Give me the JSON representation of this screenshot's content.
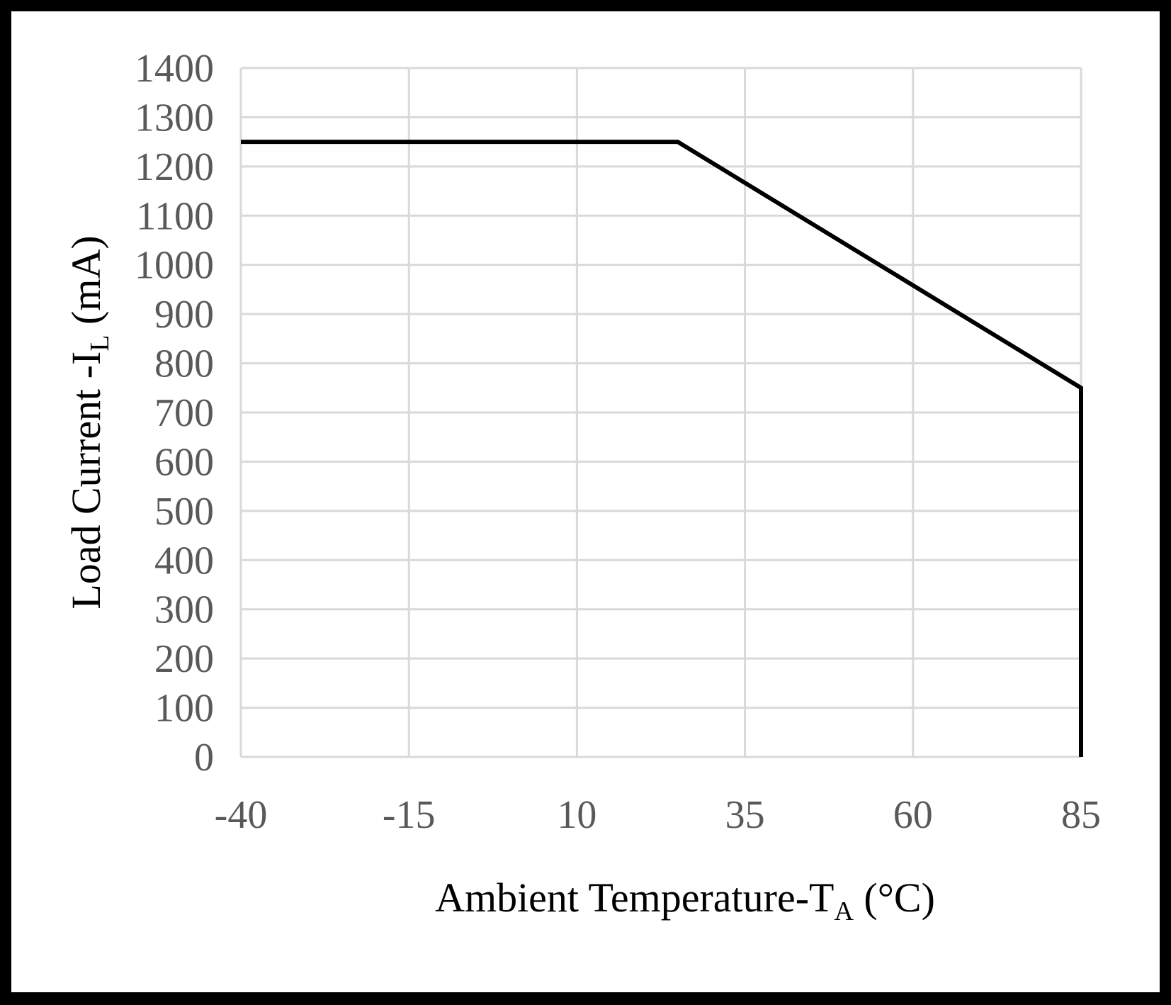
{
  "chart_data": {
    "type": "line",
    "title": "",
    "xlabel": "Ambient Temperature-T",
    "xlabel_sub": "A",
    "xlabel_suffix": " (°C)",
    "ylabel": "Load Current -I",
    "ylabel_sub": "L",
    "ylabel_suffix": " (mA)",
    "xlim": [
      -40,
      85
    ],
    "ylim": [
      0,
      1400
    ],
    "xticks": [
      -40,
      -15,
      10,
      35,
      60,
      85
    ],
    "yticks": [
      0,
      100,
      200,
      300,
      400,
      500,
      600,
      700,
      800,
      900,
      1000,
      1100,
      1200,
      1300,
      1400
    ],
    "grid": true,
    "legend": "none",
    "series": [
      {
        "name": "Load Current",
        "color": "#000000",
        "x": [
          -40,
          25,
          85,
          85
        ],
        "y": [
          1250,
          1250,
          750,
          0
        ]
      }
    ]
  },
  "colors": {
    "frame": "#000000",
    "background": "#ffffff",
    "grid": "#d9d9d9",
    "tick_text": "#595959",
    "line": "#000000"
  }
}
